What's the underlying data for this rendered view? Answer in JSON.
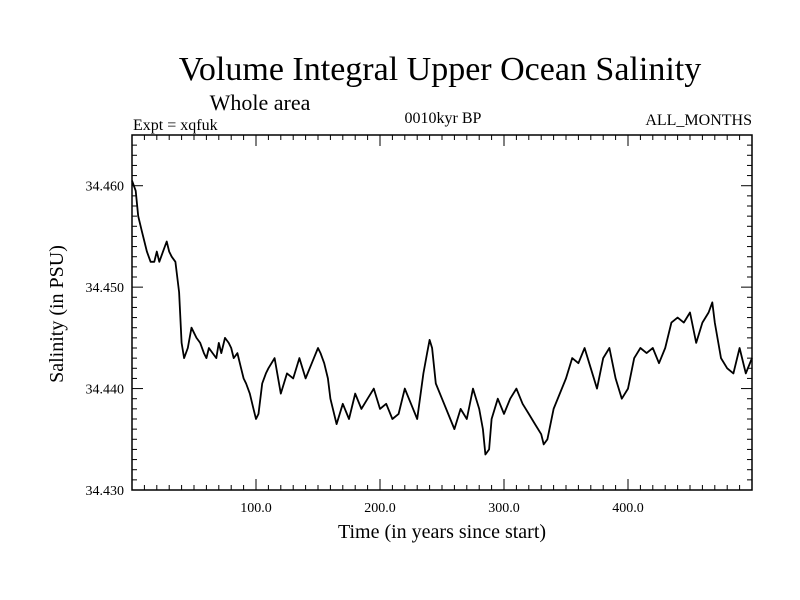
{
  "chart_data": {
    "type": "line",
    "title": "Volume Integral Upper Ocean Salinity",
    "subtitle": "Whole area",
    "experiment_label": "Expt = xqfuk",
    "period_label": "0010kyr BP",
    "months_label": "ALL_MONTHS",
    "xlabel": "Time (in years since start)",
    "ylabel": "Salinity (in PSU)",
    "xlim": [
      0,
      500
    ],
    "ylim": [
      34.43,
      34.465
    ],
    "xticks": [
      100,
      200,
      300,
      400
    ],
    "xtick_labels": [
      "100.0",
      "200.0",
      "300.0",
      "400.0"
    ],
    "yticks": [
      34.43,
      34.44,
      34.45,
      34.46
    ],
    "ytick_labels": [
      "34.430",
      "34.440",
      "34.450",
      "34.460"
    ],
    "grid": false,
    "series": [
      {
        "name": "Salinity",
        "color": "#000000",
        "x": [
          0,
          3,
          5,
          8,
          10,
          12,
          15,
          18,
          20,
          22,
          25,
          28,
          30,
          32,
          35,
          38,
          40,
          42,
          45,
          48,
          50,
          52,
          55,
          58,
          60,
          62,
          65,
          68,
          70,
          72,
          75,
          78,
          80,
          82,
          85,
          88,
          90,
          92,
          95,
          98,
          100,
          102,
          105,
          108,
          110,
          115,
          120,
          125,
          130,
          135,
          140,
          145,
          150,
          152,
          155,
          158,
          160,
          165,
          170,
          175,
          180,
          185,
          190,
          195,
          200,
          205,
          210,
          215,
          220,
          225,
          230,
          235,
          238,
          240,
          242,
          245,
          250,
          255,
          260,
          265,
          270,
          275,
          280,
          283,
          285,
          288,
          290,
          295,
          300,
          305,
          310,
          315,
          320,
          325,
          330,
          332,
          335,
          340,
          345,
          350,
          355,
          360,
          365,
          370,
          375,
          380,
          385,
          390,
          395,
          400,
          405,
          410,
          415,
          420,
          425,
          430,
          435,
          440,
          445,
          450,
          455,
          460,
          465,
          468,
          470,
          475,
          480,
          485,
          490,
          495,
          500
        ],
        "values": [
          34.4605,
          34.4595,
          34.457,
          34.4555,
          34.4545,
          34.4535,
          34.4525,
          34.4525,
          34.4535,
          34.4525,
          34.4535,
          34.4545,
          34.4535,
          34.453,
          34.4525,
          34.4495,
          34.4445,
          34.443,
          34.444,
          34.446,
          34.4455,
          34.445,
          34.4445,
          34.4435,
          34.443,
          34.444,
          34.4435,
          34.443,
          34.4445,
          34.4435,
          34.445,
          34.4445,
          34.444,
          34.443,
          34.4435,
          34.442,
          34.441,
          34.4405,
          34.4395,
          34.438,
          34.437,
          34.4375,
          34.4405,
          34.4415,
          34.442,
          34.443,
          34.4395,
          34.4415,
          34.441,
          34.443,
          34.441,
          34.4425,
          34.444,
          34.4435,
          34.4425,
          34.441,
          34.439,
          34.4365,
          34.4385,
          34.437,
          34.4395,
          34.438,
          34.439,
          34.44,
          34.438,
          34.4385,
          34.437,
          34.4375,
          34.44,
          34.4385,
          34.437,
          34.4415,
          34.4435,
          34.4448,
          34.444,
          34.4405,
          34.439,
          34.4375,
          34.436,
          34.438,
          34.437,
          34.44,
          34.438,
          34.436,
          34.4335,
          34.434,
          34.437,
          34.439,
          34.4375,
          34.439,
          34.44,
          34.4385,
          34.4375,
          34.4365,
          34.4355,
          34.4345,
          34.435,
          34.438,
          34.4395,
          34.441,
          34.443,
          34.4425,
          34.444,
          34.442,
          34.44,
          34.443,
          34.444,
          34.441,
          34.439,
          34.44,
          34.443,
          34.444,
          34.4435,
          34.444,
          34.4425,
          34.444,
          34.4465,
          34.447,
          34.4465,
          34.4475,
          34.4445,
          34.4465,
          34.4475,
          34.4485,
          34.4465,
          34.443,
          34.442,
          34.4415,
          34.444,
          34.4415,
          34.443
        ]
      }
    ]
  }
}
